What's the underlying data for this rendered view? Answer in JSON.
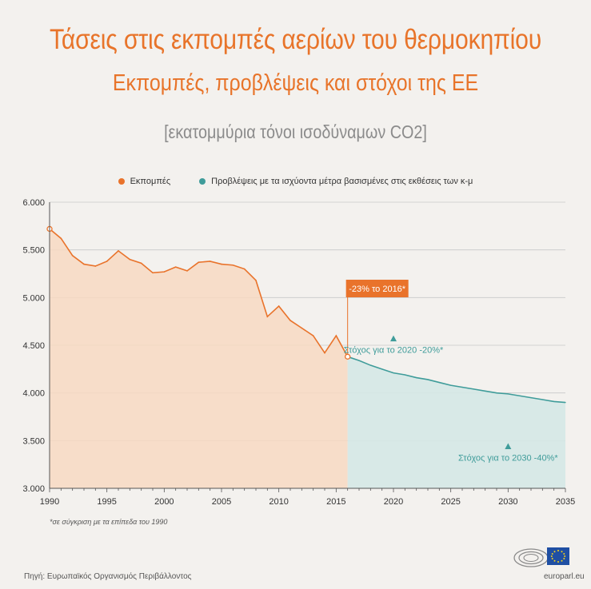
{
  "header": {
    "title": "Τάσεις στις εκπομπές αερίων του θερμοκηπίου",
    "subtitle": "Εκπομπές, προβλέψεις και στόχοι της ΕΕ",
    "unit": "[εκατομμύρια τόνοι ισοδύναμων CO2]"
  },
  "legend": {
    "emissions": "Εκπομπές",
    "projections": "Προβλέψεις με τα ισχύοντα μέτρα βασισμένες στις εκθέσεις των κ-μ"
  },
  "colors": {
    "title": "#e8742a",
    "emissions": "#e9732b",
    "emissions_fill": "#f7d9c2",
    "projections": "#3f9c9a",
    "projections_fill": "#d5e8e6",
    "grid": "#c8c8c8"
  },
  "chart_data": {
    "type": "area",
    "xlim": [
      1990,
      2035
    ],
    "ylim": [
      3000,
      6000
    ],
    "x_ticks": [
      "1990",
      "1995",
      "2000",
      "2005",
      "2010",
      "2015",
      "2020",
      "2025",
      "2030",
      "2035"
    ],
    "y_ticks": [
      "3.000",
      "3.500",
      "4.000",
      "4.500",
      "5.000",
      "5.500",
      "6.000"
    ],
    "grid": true,
    "series": [
      {
        "name": "Εκπομπές",
        "x": [
          1990,
          1991,
          1992,
          1993,
          1994,
          1995,
          1996,
          1997,
          1998,
          1999,
          2000,
          2001,
          2002,
          2003,
          2004,
          2005,
          2006,
          2007,
          2008,
          2009,
          2010,
          2011,
          2012,
          2013,
          2014,
          2015,
          2016
        ],
        "y": [
          5720,
          5620,
          5440,
          5350,
          5330,
          5380,
          5490,
          5400,
          5360,
          5260,
          5270,
          5320,
          5280,
          5370,
          5380,
          5350,
          5340,
          5300,
          5180,
          4800,
          4910,
          4760,
          4680,
          4600,
          4420,
          4600,
          4380
        ]
      },
      {
        "name": "Προβλέψεις με τα ισχύοντα μέτρα βασισμένες στις εκθέσεις των κ-μ",
        "x": [
          2016,
          2017,
          2018,
          2019,
          2020,
          2021,
          2022,
          2023,
          2024,
          2025,
          2026,
          2027,
          2028,
          2029,
          2030,
          2031,
          2032,
          2033,
          2034,
          2035
        ],
        "y": [
          4380,
          4340,
          4290,
          4250,
          4210,
          4190,
          4160,
          4140,
          4110,
          4080,
          4060,
          4040,
          4020,
          4000,
          3990,
          3970,
          3950,
          3930,
          3910,
          3900
        ]
      }
    ],
    "annotations": [
      {
        "text": "-23% το 2016*",
        "x": 2016,
        "y": 4380,
        "style": "callout"
      },
      {
        "text": "Στόχος για το 2020 -20%*",
        "x": 2020,
        "y": 4570,
        "style": "target"
      },
      {
        "text": "Στόχος για το 2030 -40%*",
        "x": 2030,
        "y": 3440,
        "style": "target"
      }
    ]
  },
  "footnote": "*σε σύγκριση με τα επίπεδα του 1990",
  "source": "Πηγή: Ευρωπαϊκός Οργανισμός Περιβάλλοντος",
  "brand": "europarl.eu"
}
